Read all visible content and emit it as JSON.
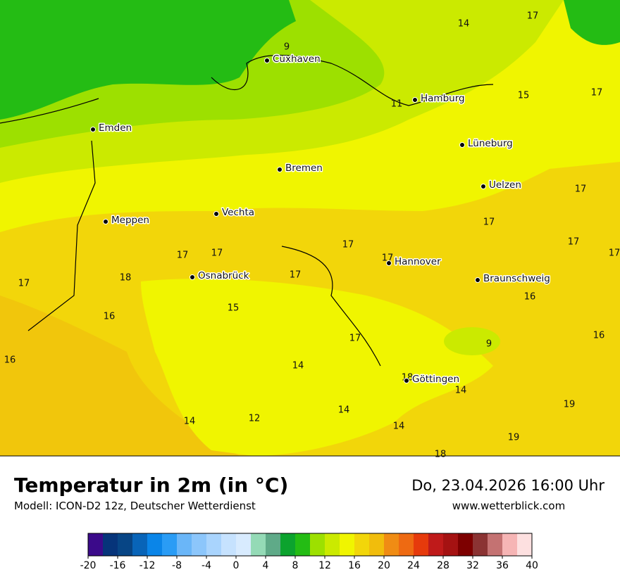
{
  "header": {
    "title": "Temperatur in 2m (in °C)",
    "subtitle": "Modell: ICON-D2 12z, Deutscher Wetterdienst",
    "date": "Do, 23.04.2026 16:00 Uhr",
    "website": "www.wetterblick.com"
  },
  "cities": [
    "Cuxhaven",
    "Hamburg",
    "Emden",
    "Lüneburg",
    "Bremen",
    "Uelzen",
    "Vechta",
    "Meppen",
    "Hannover",
    "Osnabrück",
    "Braunschweig",
    "Göttingen"
  ],
  "map_labels": [
    14,
    17,
    9,
    15,
    17,
    11,
    17,
    17,
    17,
    17,
    17,
    17,
    17,
    17,
    17,
    17,
    18,
    15,
    16,
    16,
    16,
    16,
    17,
    9,
    14,
    18,
    14,
    14,
    19,
    14,
    14,
    12,
    19,
    18
  ],
  "colorbar": {
    "colors": [
      "#3b0a8a",
      "#06347a",
      "#074585",
      "#0864b8",
      "#0a85e8",
      "#2a9cf5",
      "#6ab6f8",
      "#8cc6fb",
      "#a9d4fd",
      "#c6e2fe",
      "#d8ebfe",
      "#94dab6",
      "#5faa88",
      "#0ca32e",
      "#24bc14",
      "#9de000",
      "#cbea00",
      "#f0f500",
      "#f2d60a",
      "#f1bd0c",
      "#f08c14",
      "#ee6a12",
      "#e63a0c",
      "#bf1a1a",
      "#a51212",
      "#7d0000",
      "#8b3333",
      "#c47272",
      "#f6b5b5",
      "#fde0e0"
    ],
    "ticks": [
      -20,
      -16,
      -12,
      -8,
      -4,
      0,
      4,
      8,
      12,
      16,
      20,
      24,
      28,
      32,
      36,
      40
    ]
  }
}
